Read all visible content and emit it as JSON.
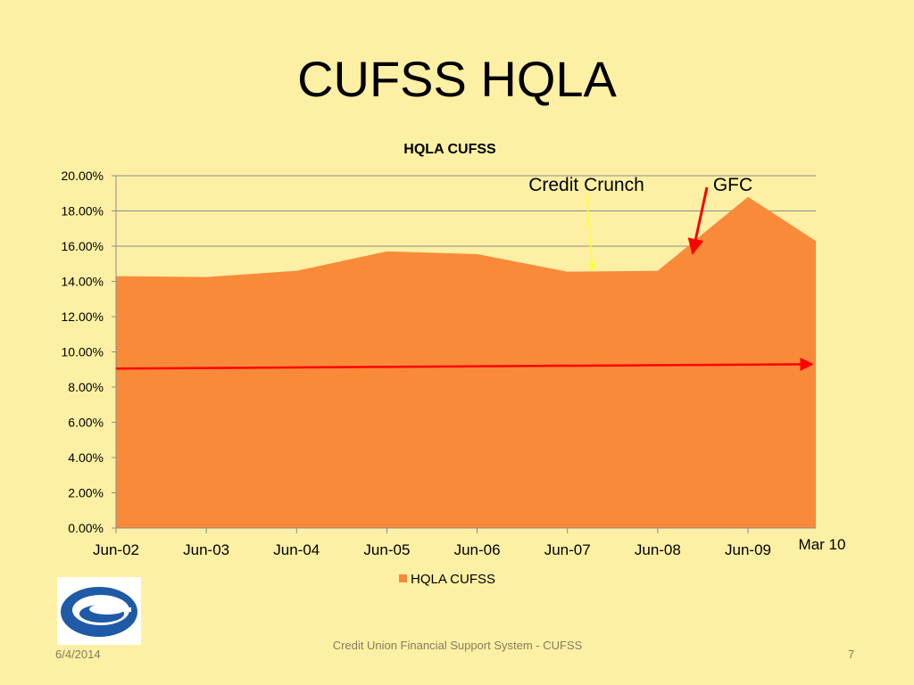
{
  "slide": {
    "title": "CUFSS HQLA",
    "footer_date": "6/4/2014",
    "footer_text": "Credit Union Financial Support System - CUFSS",
    "page_number": "7"
  },
  "colors": {
    "background": "#fdf0a4",
    "area_fill": "#f88a3a",
    "gridline": "#8c8c8c",
    "red_arrow": "#ff0000",
    "yellow_arrow": "#ffff33",
    "logo_blue": "#1f5aa6"
  },
  "logo": {
    "icon": "cufss-logo-icon"
  },
  "chart_data": {
    "type": "area",
    "title": "HQLA CUFSS",
    "categories": [
      "Jun-02",
      "Jun-03",
      "Jun-04",
      "Jun-05",
      "Jun-06",
      "Jun-07",
      "Jun-08",
      "Jun-09",
      "Mar 10"
    ],
    "x_tick_labels": [
      "Jun-02",
      "Jun-03",
      "Jun-04",
      "Jun-05",
      "Jun-06",
      "Jun-07",
      "Jun-08",
      "Jun-09"
    ],
    "extra_label": "Mar 10",
    "y_tick_labels": [
      "0.00%",
      "2.00%",
      "4.00%",
      "6.00%",
      "8.00%",
      "10.00%",
      "12.00%",
      "14.00%",
      "16.00%",
      "18.00%",
      "20.00%"
    ],
    "series": [
      {
        "name": "HQLA CUFSS",
        "values": [
          14.3,
          14.25,
          14.6,
          15.7,
          15.55,
          14.55,
          14.6,
          18.8,
          16.3
        ]
      }
    ],
    "ylim": [
      0,
      20
    ],
    "grid": true,
    "legend": "bottom",
    "reference_line": {
      "start": 9.05,
      "end": 9.3
    },
    "annotations": [
      {
        "label": "Credit Crunch",
        "at": "Jun-07",
        "arrow_value": 14.5
      },
      {
        "label": "GFC",
        "at": "Jun-08",
        "arrow_value": 16.0
      }
    ]
  }
}
